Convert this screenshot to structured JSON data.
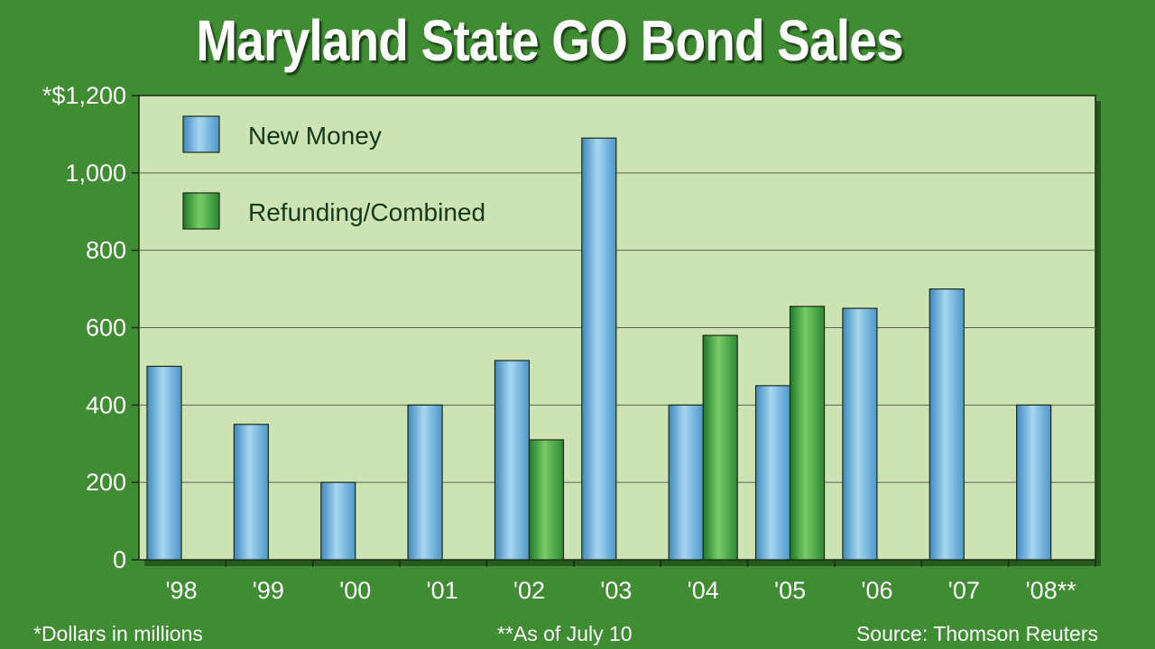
{
  "title": "Maryland State GO Bond Sales",
  "footnotes": {
    "left": "*Dollars in millions",
    "center": "**As of July 10",
    "right": "Source: Thomson Reuters"
  },
  "colors": {
    "background": "#3f8c33",
    "plot_area": "#cde3b4",
    "new_money": "#76b8dc",
    "refunding": "#3ea043"
  },
  "chart_data": {
    "type": "bar",
    "categories": [
      "'98",
      "'99",
      "'00",
      "'01",
      "'02",
      "'03",
      "'04",
      "'05",
      "'06",
      "'07",
      "'08**"
    ],
    "series": [
      {
        "name": "New Money",
        "values": [
          500,
          350,
          200,
          400,
          515,
          1090,
          400,
          450,
          650,
          700,
          400
        ]
      },
      {
        "name": "Refunding/Combined",
        "values": [
          null,
          null,
          null,
          null,
          310,
          null,
          580,
          655,
          null,
          null,
          null
        ]
      }
    ],
    "ylim": [
      0,
      1200
    ],
    "yticks": [
      0,
      200,
      400,
      600,
      800,
      1000,
      1200
    ],
    "ytick_labels": [
      "0",
      "200",
      "400",
      "600",
      "800",
      "1,000",
      "*$1,200"
    ],
    "grid": true,
    "legend_position": "top-left"
  }
}
